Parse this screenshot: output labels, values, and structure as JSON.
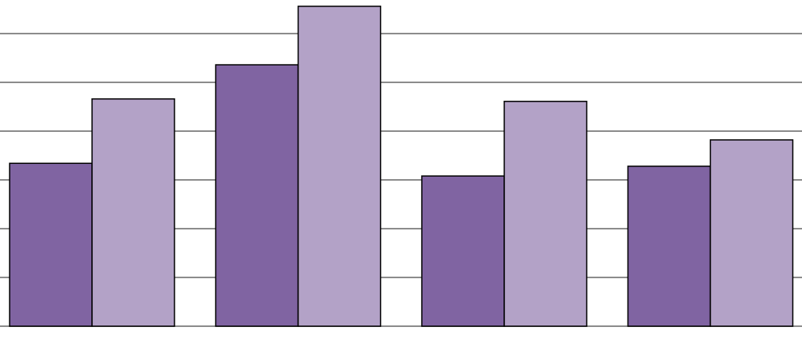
{
  "chart_data": {
    "type": "bar",
    "categories": [
      null,
      null,
      null,
      null
    ],
    "series": [
      {
        "color": "#8064a2",
        "values": [
          3.34,
          5.36,
          3.08,
          3.28
        ]
      },
      {
        "color": "#b3a2c7",
        "values": [
          4.66,
          6.56,
          4.61,
          3.82
        ]
      }
    ],
    "ylim": [
      0,
      6.7
    ],
    "yticks": [
      0,
      1,
      2,
      3,
      4,
      5,
      6
    ],
    "grid": true
  }
}
